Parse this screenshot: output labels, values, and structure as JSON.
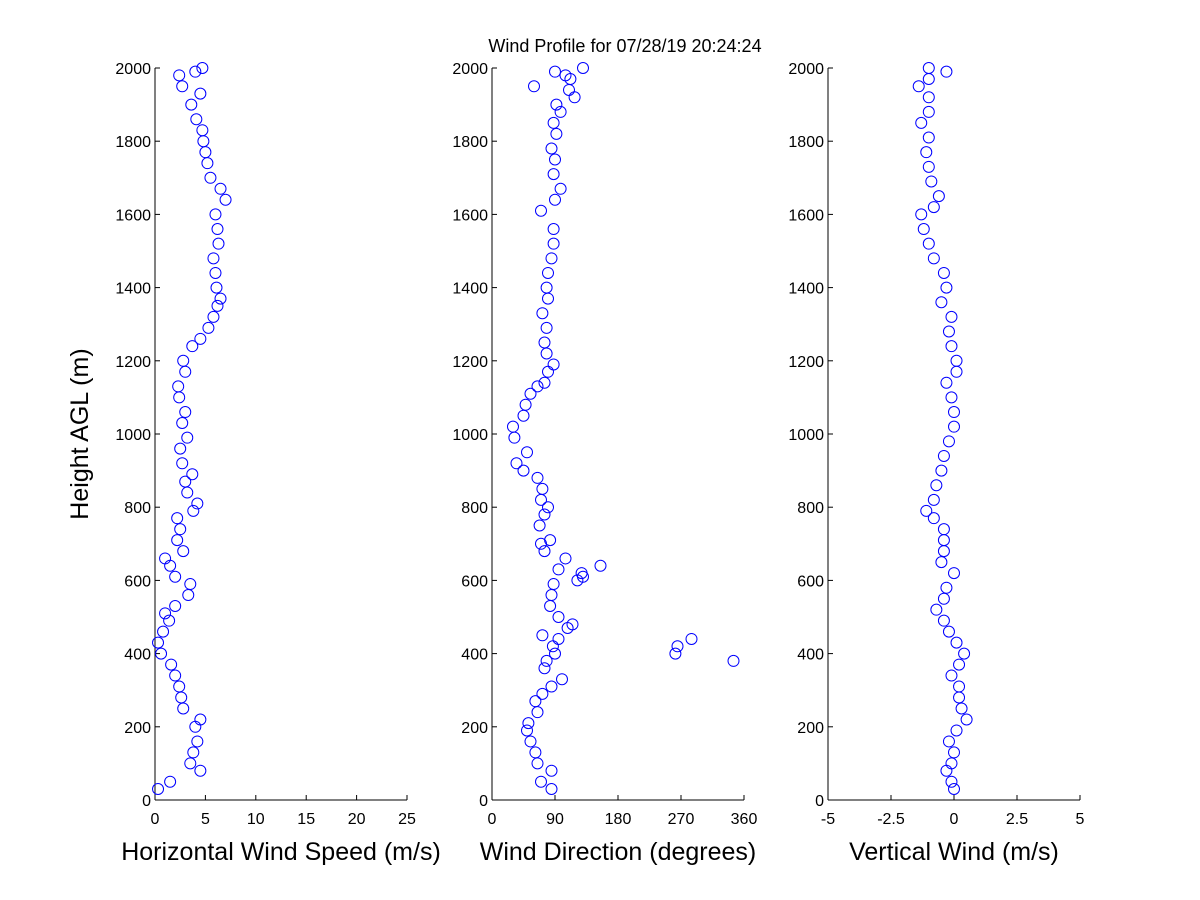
{
  "title": "Wind Profile for  07/28/19 20:24:24",
  "chart_data": [
    {
      "type": "scatter",
      "xlabel": "Horizontal Wind Speed (m/s)",
      "ylabel": "Height AGL (m)",
      "color": "#0000ff",
      "xlim": [
        0,
        25
      ],
      "xticks": [
        0,
        5,
        10,
        15,
        20,
        25
      ],
      "ylim": [
        0,
        2000
      ],
      "yticks": [
        0,
        200,
        400,
        600,
        800,
        1000,
        1200,
        1400,
        1600,
        1800,
        2000
      ],
      "x": [
        0.3,
        1.5,
        4.5,
        3.5,
        3.8,
        4.2,
        4,
        4.5,
        2.8,
        2.6,
        2.4,
        2,
        1.6,
        0.6,
        0.3,
        0.8,
        1.4,
        1,
        2,
        3.3,
        3.5,
        2,
        1.5,
        1,
        2.8,
        2.2,
        2.5,
        2.2,
        3.8,
        4.2,
        3.2,
        3,
        3.7,
        2.7,
        2.5,
        3.2,
        2.7,
        3,
        2.4,
        2.3,
        3,
        2.8,
        3.7,
        4.5,
        5.3,
        5.8,
        6.2,
        6.5,
        6.1,
        6,
        5.8,
        6.3,
        6.2,
        6,
        7,
        6.5,
        5.5,
        5.2,
        5,
        4.8,
        4.7,
        4.1,
        3.6,
        4.5,
        2.7,
        2.4,
        4,
        4.7
      ],
      "y": [
        30,
        50,
        80,
        100,
        130,
        160,
        200,
        220,
        250,
        280,
        310,
        340,
        370,
        400,
        430,
        460,
        490,
        510,
        530,
        560,
        590,
        610,
        640,
        660,
        680,
        710,
        740,
        770,
        790,
        810,
        840,
        870,
        890,
        920,
        960,
        990,
        1030,
        1060,
        1100,
        1130,
        1170,
        1200,
        1240,
        1260,
        1290,
        1320,
        1350,
        1370,
        1400,
        1440,
        1480,
        1520,
        1560,
        1600,
        1640,
        1670,
        1700,
        1740,
        1770,
        1800,
        1830,
        1860,
        1900,
        1930,
        1950,
        1980,
        1990,
        2000
      ]
    },
    {
      "type": "scatter",
      "xlabel": "Wind Direction (degrees)",
      "color": "#0000ff",
      "xlim": [
        0,
        360
      ],
      "xticks": [
        0,
        90,
        180,
        270,
        360
      ],
      "ylim": [
        0,
        2000
      ],
      "yticks": [
        0,
        200,
        400,
        600,
        800,
        1000,
        1200,
        1400,
        1600,
        1800,
        2000
      ],
      "x": [
        85,
        70,
        85,
        65,
        62,
        55,
        50,
        52,
        65,
        62,
        72,
        85,
        100,
        75,
        78,
        90,
        87,
        95,
        72,
        108,
        115,
        95,
        83,
        85,
        88,
        122,
        130,
        128,
        95,
        155,
        105,
        75,
        70,
        83,
        68,
        75,
        80,
        70,
        72,
        65,
        45,
        35,
        50,
        32,
        30,
        45,
        48,
        55,
        65,
        75,
        80,
        88,
        78,
        75,
        78,
        72,
        80,
        78,
        80,
        85,
        88,
        88,
        70,
        90,
        98,
        88,
        90,
        85,
        92,
        88,
        98,
        92,
        118,
        110,
        60,
        112,
        105,
        90,
        130,
        345,
        262,
        265,
        285
      ],
      "y": [
        30,
        50,
        80,
        100,
        130,
        160,
        190,
        210,
        240,
        270,
        290,
        310,
        330,
        360,
        380,
        400,
        420,
        440,
        450,
        470,
        480,
        500,
        530,
        560,
        590,
        600,
        610,
        620,
        630,
        640,
        660,
        680,
        700,
        710,
        750,
        780,
        800,
        820,
        850,
        880,
        900,
        920,
        950,
        990,
        1020,
        1050,
        1080,
        1110,
        1130,
        1140,
        1170,
        1190,
        1220,
        1250,
        1290,
        1330,
        1370,
        1400,
        1440,
        1480,
        1520,
        1560,
        1610,
        1640,
        1670,
        1710,
        1750,
        1780,
        1820,
        1850,
        1880,
        1900,
        1920,
        1940,
        1950,
        1970,
        1980,
        1990,
        2000,
        380,
        400,
        420,
        440
      ]
    },
    {
      "type": "scatter",
      "xlabel": "Vertical Wind (m/s)",
      "color": "#0000ff",
      "xlim": [
        -5,
        5
      ],
      "xticks": [
        -5,
        -2.5,
        0,
        2.5,
        5
      ],
      "ylim": [
        0,
        2000
      ],
      "yticks": [
        0,
        200,
        400,
        600,
        800,
        1000,
        1200,
        1400,
        1600,
        1800,
        2000
      ],
      "x": [
        0,
        -0.1,
        -0.3,
        -0.1,
        0,
        -0.2,
        0.1,
        0.5,
        0.3,
        0.2,
        0.2,
        -0.1,
        0.2,
        0.4,
        0.1,
        -0.2,
        -0.4,
        -0.7,
        -0.4,
        -0.3,
        0,
        -0.5,
        -0.4,
        -0.4,
        -0.4,
        -0.8,
        -1.1,
        -0.8,
        -0.7,
        -0.5,
        -0.4,
        -0.2,
        0,
        0,
        -0.1,
        -0.3,
        0.1,
        0.1,
        -0.1,
        -0.2,
        -0.1,
        -0.5,
        -0.3,
        -0.4,
        -0.8,
        -1,
        -1.2,
        -1.3,
        -0.8,
        -0.6,
        -0.9,
        -1,
        -1.1,
        -1,
        -1.3,
        -1,
        -1,
        -1.4,
        -1,
        -0.3,
        -1
      ],
      "y": [
        30,
        50,
        80,
        100,
        130,
        160,
        190,
        220,
        250,
        280,
        310,
        340,
        370,
        400,
        430,
        460,
        490,
        520,
        550,
        580,
        620,
        650,
        680,
        710,
        740,
        770,
        790,
        820,
        860,
        900,
        940,
        980,
        1020,
        1060,
        1100,
        1140,
        1170,
        1200,
        1240,
        1280,
        1320,
        1360,
        1400,
        1440,
        1480,
        1520,
        1560,
        1600,
        1620,
        1650,
        1690,
        1730,
        1770,
        1810,
        1850,
        1880,
        1920,
        1950,
        1970,
        1990,
        2000
      ]
    }
  ]
}
